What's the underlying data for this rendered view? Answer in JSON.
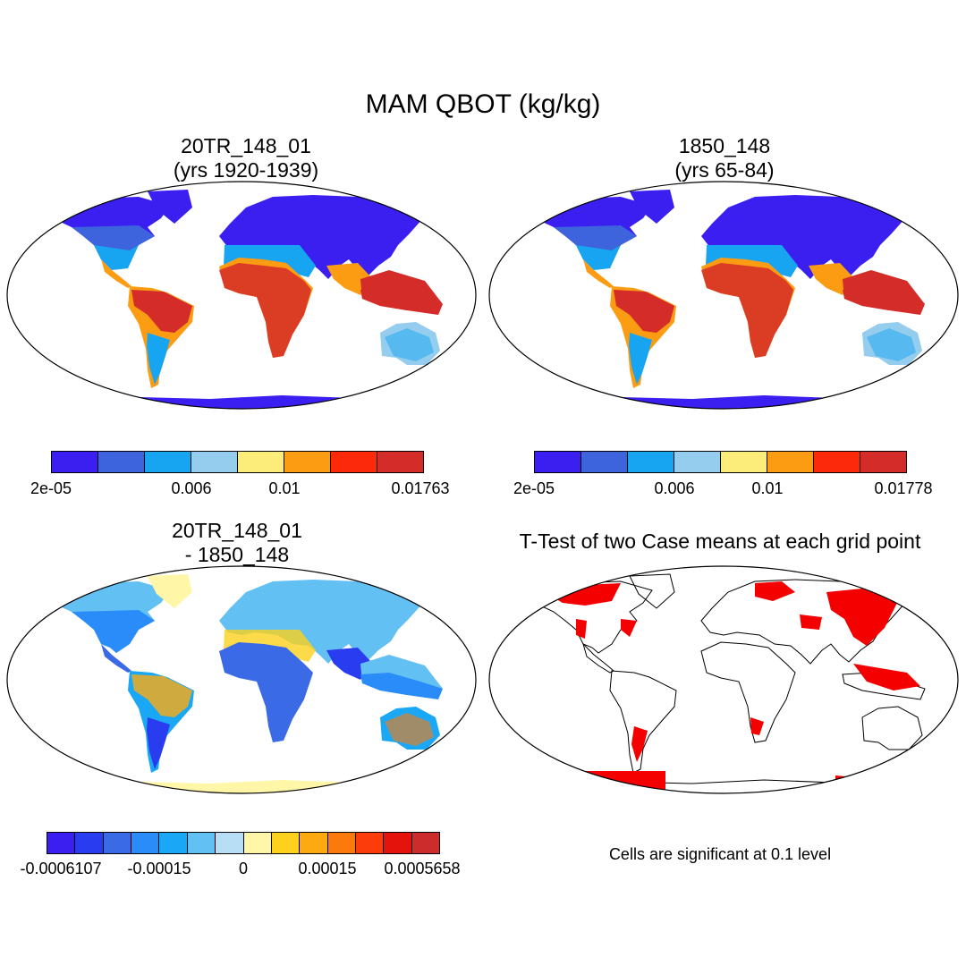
{
  "title": "MAM QBOT (kg/kg)",
  "panels": {
    "a": {
      "title1": "20TR_148_01",
      "title2": "(yrs 1920-1939)"
    },
    "b": {
      "title1": "1850_148",
      "title2": "(yrs 65-84)"
    },
    "c": {
      "title1": "20TR_148_01",
      "title2": "- 1850_148"
    },
    "d": {
      "title1": "T-Test of two Case means at each grid point"
    }
  },
  "colorbar_a": {
    "colors": [
      "#3a1ff0",
      "#3d64dc",
      "#17a5f2",
      "#94cdee",
      "#fcec7a",
      "#fc9c12",
      "#fc2a0a",
      "#d42c28"
    ],
    "labels": [
      "2e-05",
      "0.006",
      "0.01",
      "0.01763"
    ]
  },
  "colorbar_b": {
    "colors": [
      "#3a1ff0",
      "#3d64dc",
      "#17a5f2",
      "#94cdee",
      "#fcec7a",
      "#fc9c12",
      "#fc2a0a",
      "#d42c28"
    ],
    "labels": [
      "2e-05",
      "0.006",
      "0.01",
      "0.01778"
    ]
  },
  "colorbar_c": {
    "colors": [
      "#3a1ff0",
      "#2a3cf0",
      "#3b6ae6",
      "#2a8cf8",
      "#1aa8f6",
      "#62c0f2",
      "#b8def6",
      "#fff6a8",
      "#fdd11c",
      "#fcaa10",
      "#fc7a0c",
      "#fc3c0a",
      "#e4140c",
      "#cc2c2c"
    ],
    "labels": [
      "-0.0006107",
      "-0.00015",
      "0",
      "0.00015",
      "0.0005658"
    ]
  },
  "significance": {
    "color": "#f40000",
    "note": "Cells are significant at 0.1 level"
  }
}
